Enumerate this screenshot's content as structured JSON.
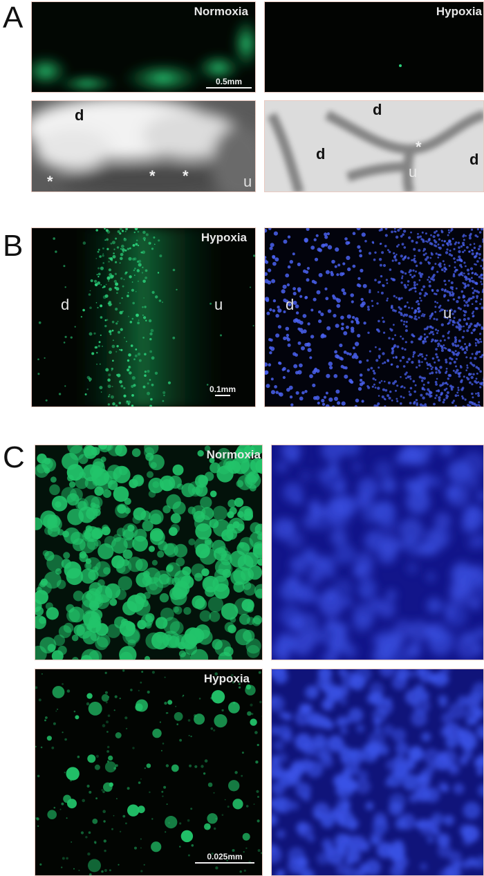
{
  "figure": {
    "panel_a": {
      "letter": "A",
      "normoxia_label": "Normoxia",
      "hypoxia_label": "Hypoxia",
      "scale": "0.5mm",
      "marks_left": [
        "d",
        "*",
        "*",
        "*",
        "u"
      ],
      "marks_right": [
        "d",
        "d",
        "*",
        "u",
        "d"
      ]
    },
    "panel_b": {
      "letter": "B",
      "hypoxia_label": "Hypoxia",
      "scale": "0.1mm",
      "marks_green": [
        "d",
        "u"
      ],
      "marks_blue": [
        "d",
        "u"
      ]
    },
    "panel_c": {
      "letter": "C",
      "normoxia_label": "Normoxia",
      "hypoxia_label": "Hypoxia",
      "scale": "0.025mm"
    }
  },
  "colors": {
    "gfp_green": "#22c46a",
    "dapi_blue": "#3a4fe0",
    "background_dark": "#020402",
    "border": "#e9c9c0"
  }
}
